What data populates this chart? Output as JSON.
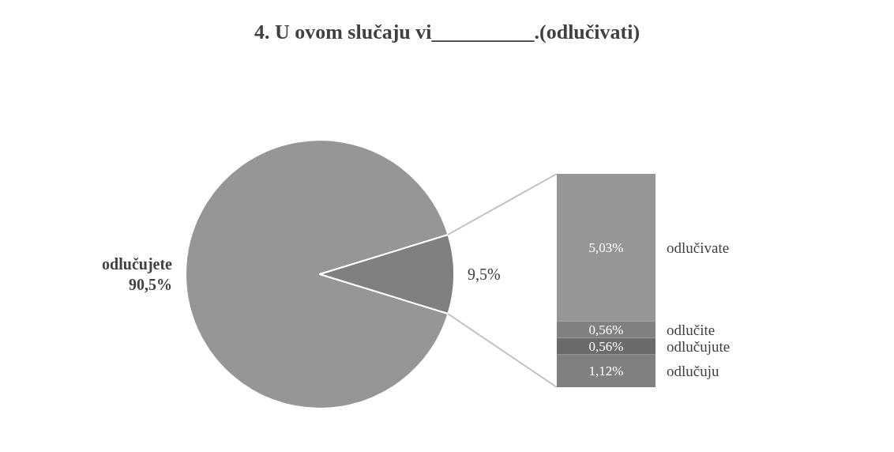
{
  "chart_data": [
    {
      "type": "pie",
      "title": "4. U ovom slučaju vi__________.(odlučivati)",
      "categories": [
        "odlučujete",
        null
      ],
      "values": [
        90.5,
        9.5
      ],
      "colors": [
        "#969696",
        "#808080"
      ],
      "value_labels": [
        "90,5%",
        "9,5%"
      ],
      "legend": false
    },
    {
      "type": "bar",
      "stacked": true,
      "categories": [
        null
      ],
      "tick_labels": false,
      "legend": false,
      "series": [
        {
          "name": "odlučuju",
          "color": "#808080",
          "values": [
            1.12
          ],
          "value_labels": [
            "1,12%"
          ]
        },
        {
          "name": "odlučujute",
          "color": "#6b6b6b",
          "values": [
            0.56
          ],
          "value_labels": [
            "0,56%"
          ]
        },
        {
          "name": "odlučite",
          "color": "#808080",
          "values": [
            0.56
          ],
          "value_labels": [
            "0,56%"
          ]
        },
        {
          "name": "odlučivate",
          "color": "#969696",
          "values": [
            5.03
          ],
          "value_labels": [
            "5,03%"
          ]
        }
      ]
    }
  ]
}
